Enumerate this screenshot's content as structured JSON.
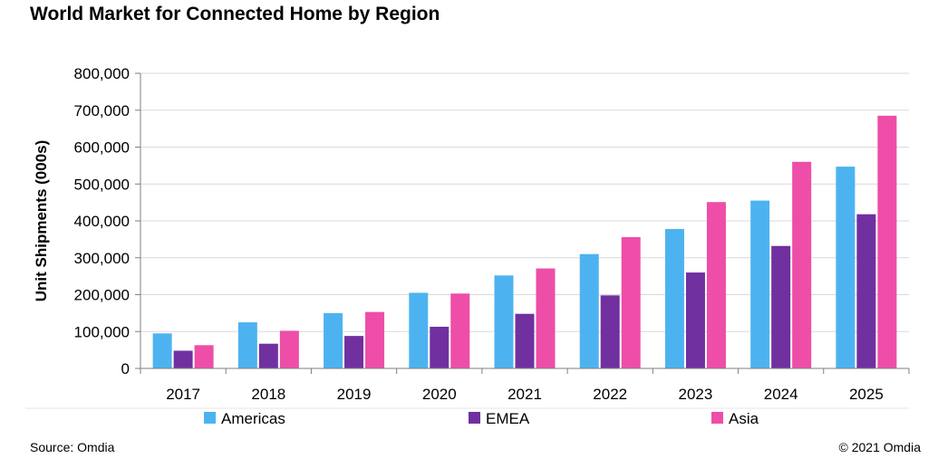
{
  "chart_data": {
    "type": "bar",
    "title": "World Market for Connected Home by Region",
    "xlabel": "",
    "ylabel": "Unit Shipments (000s)",
    "ylim": [
      0,
      800000
    ],
    "yticks": [
      0,
      100000,
      200000,
      300000,
      400000,
      500000,
      600000,
      700000,
      800000
    ],
    "ytick_labels": [
      "0",
      "100,000",
      "200,000",
      "300,000",
      "400,000",
      "500,000",
      "600,000",
      "700,000",
      "800,000"
    ],
    "grid": true,
    "legend_position": "bottom",
    "categories": [
      "2017",
      "2018",
      "2019",
      "2020",
      "2021",
      "2022",
      "2023",
      "2024",
      "2025"
    ],
    "series": [
      {
        "name": "Americas",
        "color": "#4db3f0",
        "values": [
          95000,
          125000,
          150000,
          205000,
          252000,
          310000,
          378000,
          455000,
          547000
        ]
      },
      {
        "name": "EMEA",
        "color": "#7030a0",
        "values": [
          48000,
          67000,
          88000,
          113000,
          148000,
          198000,
          260000,
          332000,
          418000
        ]
      },
      {
        "name": "Asia",
        "color": "#ee4da8",
        "values": [
          63000,
          102000,
          153000,
          203000,
          271000,
          356000,
          451000,
          560000,
          685000
        ]
      }
    ]
  },
  "footer": {
    "source": "Source: Omdia",
    "copyright": "© 2021 Omdia"
  }
}
